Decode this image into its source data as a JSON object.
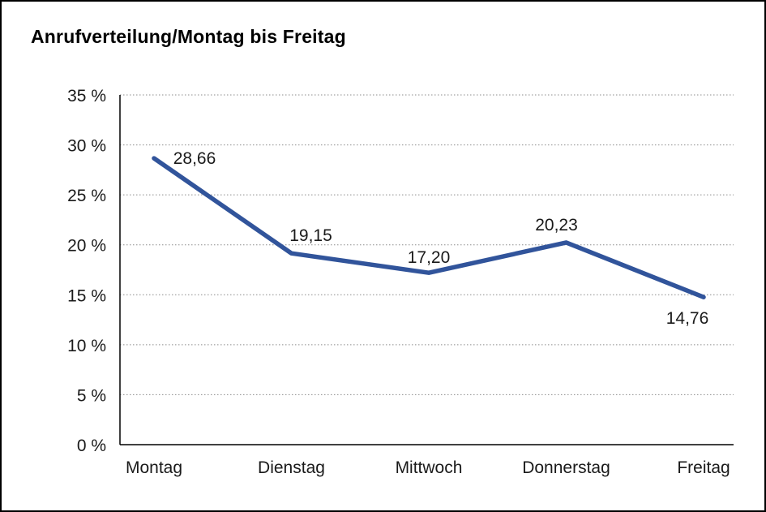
{
  "chart_data": {
    "type": "line",
    "title": "Anrufverteilung/Montag bis Freitag",
    "categories": [
      "Montag",
      "Dienstag",
      "Mittwoch",
      "Donnerstag",
      "Freitag"
    ],
    "values": [
      28.66,
      19.15,
      17.2,
      20.23,
      14.76
    ],
    "value_labels": [
      "28,66",
      "19,15",
      "17,20",
      "20,23",
      "14,76"
    ],
    "xlabel": "",
    "ylabel": "",
    "ylim": [
      0,
      35
    ],
    "ytick_step": 5,
    "ytick_labels": [
      "0 %",
      "5 %",
      "10 %",
      "15 %",
      "20 %",
      "25 %",
      "30 %",
      "35 %"
    ],
    "grid": "horizontal-dotted",
    "legend": "none",
    "line_color": "#31549B",
    "grid_color": "#8c8c8c",
    "axis_color": "#000000",
    "background": "#FFFFFF",
    "border_color": "#000000"
  }
}
